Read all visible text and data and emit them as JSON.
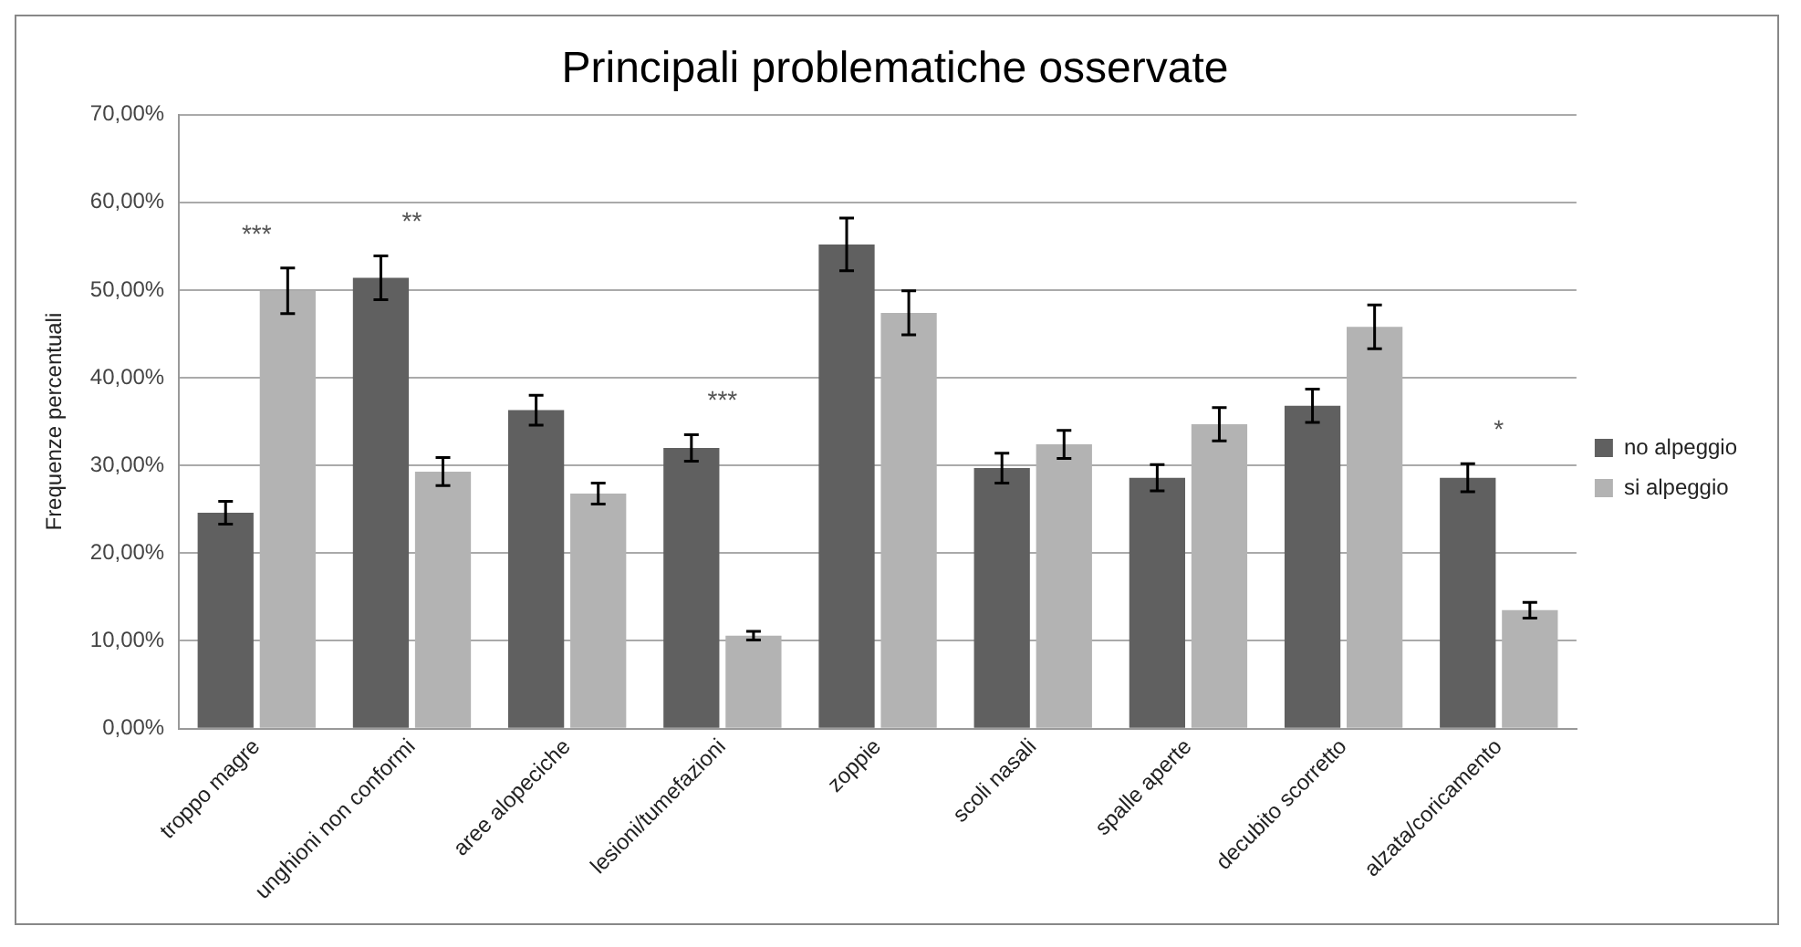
{
  "chart_data": {
    "type": "bar",
    "title": "Principali problematiche osservate",
    "ylabel": "Frequenze percentuali",
    "categories": [
      "troppo magre",
      "unghioni non conformi",
      "aree alopeciche",
      "lesioni/tumefazioni",
      "zoppie",
      "scoli nasali",
      "spalle aperte",
      "decubito scorretto",
      "alzata/coricamento"
    ],
    "series": [
      {
        "name": "no alpeggio",
        "color": "#606060",
        "values": [
          24.6,
          51.4,
          36.3,
          32.0,
          55.2,
          29.7,
          28.6,
          36.8,
          28.6
        ],
        "errors": [
          1.3,
          2.5,
          1.7,
          1.5,
          3.0,
          1.7,
          1.5,
          1.9,
          1.6
        ]
      },
      {
        "name": "si alpeggio",
        "color": "#b3b3b3",
        "values": [
          49.9,
          29.3,
          26.8,
          10.6,
          47.4,
          32.4,
          34.7,
          45.8,
          13.5
        ],
        "errors": [
          2.6,
          1.6,
          1.2,
          0.5,
          2.5,
          1.6,
          1.9,
          2.5,
          0.9
        ]
      }
    ],
    "ylim": [
      0,
      70
    ],
    "yticks": [
      {
        "value": 0,
        "label": "0,00%"
      },
      {
        "value": 10,
        "label": "10,00%"
      },
      {
        "value": 20,
        "label": "20,00%"
      },
      {
        "value": 30,
        "label": "30,00%"
      },
      {
        "value": 40,
        "label": "40,00%"
      },
      {
        "value": 50,
        "label": "50,00%"
      },
      {
        "value": 60,
        "label": "60,00%"
      },
      {
        "value": 70,
        "label": "70,00%"
      }
    ],
    "grid": "y",
    "legend": "right",
    "annotations": [
      "***",
      "**",
      "***",
      "*"
    ]
  }
}
